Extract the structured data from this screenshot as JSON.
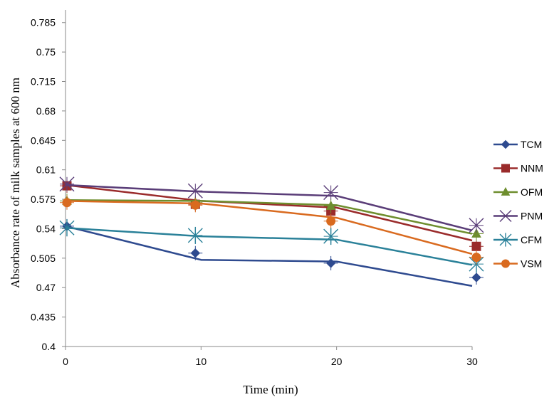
{
  "chart_data": {
    "type": "line",
    "title": "",
    "xlabel": "Time (min)",
    "ylabel": "Absorbance rate of milk samples at 600 nm",
    "x": [
      0,
      10,
      20,
      30
    ],
    "x_ticks": [
      "0",
      "10",
      "20",
      "30"
    ],
    "xlim": [
      0,
      30
    ],
    "ylim": [
      0.4,
      0.8
    ],
    "y_ticks": [
      "0.4",
      "0.435",
      "0.47",
      "0.505",
      "0.54",
      "0.575",
      "0.61",
      "0.645",
      "0.68",
      "0.715",
      "0.75",
      "0.785"
    ],
    "grid": false,
    "legend_position": "right",
    "series": [
      {
        "name": "TCM",
        "color": "#2E4A8F",
        "marker": "diamond",
        "line_values": [
          0.543,
          0.503,
          0.501,
          0.472
        ],
        "marker_values": [
          0.543,
          0.511,
          0.499,
          0.482
        ]
      },
      {
        "name": "NNM",
        "color": "#9A2B2B",
        "marker": "square",
        "line_values": [
          0.592,
          0.573,
          0.565,
          0.526
        ],
        "marker_values": [
          0.591,
          0.569,
          0.561,
          0.519
        ]
      },
      {
        "name": "OFM",
        "color": "#6E8E2E",
        "marker": "triangle",
        "line_values": [
          0.574,
          0.573,
          0.568,
          0.534
        ],
        "marker_values": [
          0.573,
          0.571,
          0.567,
          0.534
        ]
      },
      {
        "name": "PNM",
        "color": "#5A3D78",
        "marker": "x",
        "line_values": [
          0.592,
          0.584,
          0.579,
          0.538
        ],
        "marker_values": [
          0.593,
          0.585,
          0.583,
          0.544
        ]
      },
      {
        "name": "CFM",
        "color": "#2A8199",
        "marker": "asterisk",
        "line_values": [
          0.541,
          0.531,
          0.527,
          0.497
        ],
        "marker_values": [
          0.541,
          0.532,
          0.531,
          0.498
        ]
      },
      {
        "name": "VSM",
        "color": "#D96A1F",
        "marker": "circle",
        "line_values": [
          0.573,
          0.57,
          0.553,
          0.51
        ],
        "marker_values": [
          0.571,
          0.568,
          0.549,
          0.506
        ]
      }
    ]
  }
}
